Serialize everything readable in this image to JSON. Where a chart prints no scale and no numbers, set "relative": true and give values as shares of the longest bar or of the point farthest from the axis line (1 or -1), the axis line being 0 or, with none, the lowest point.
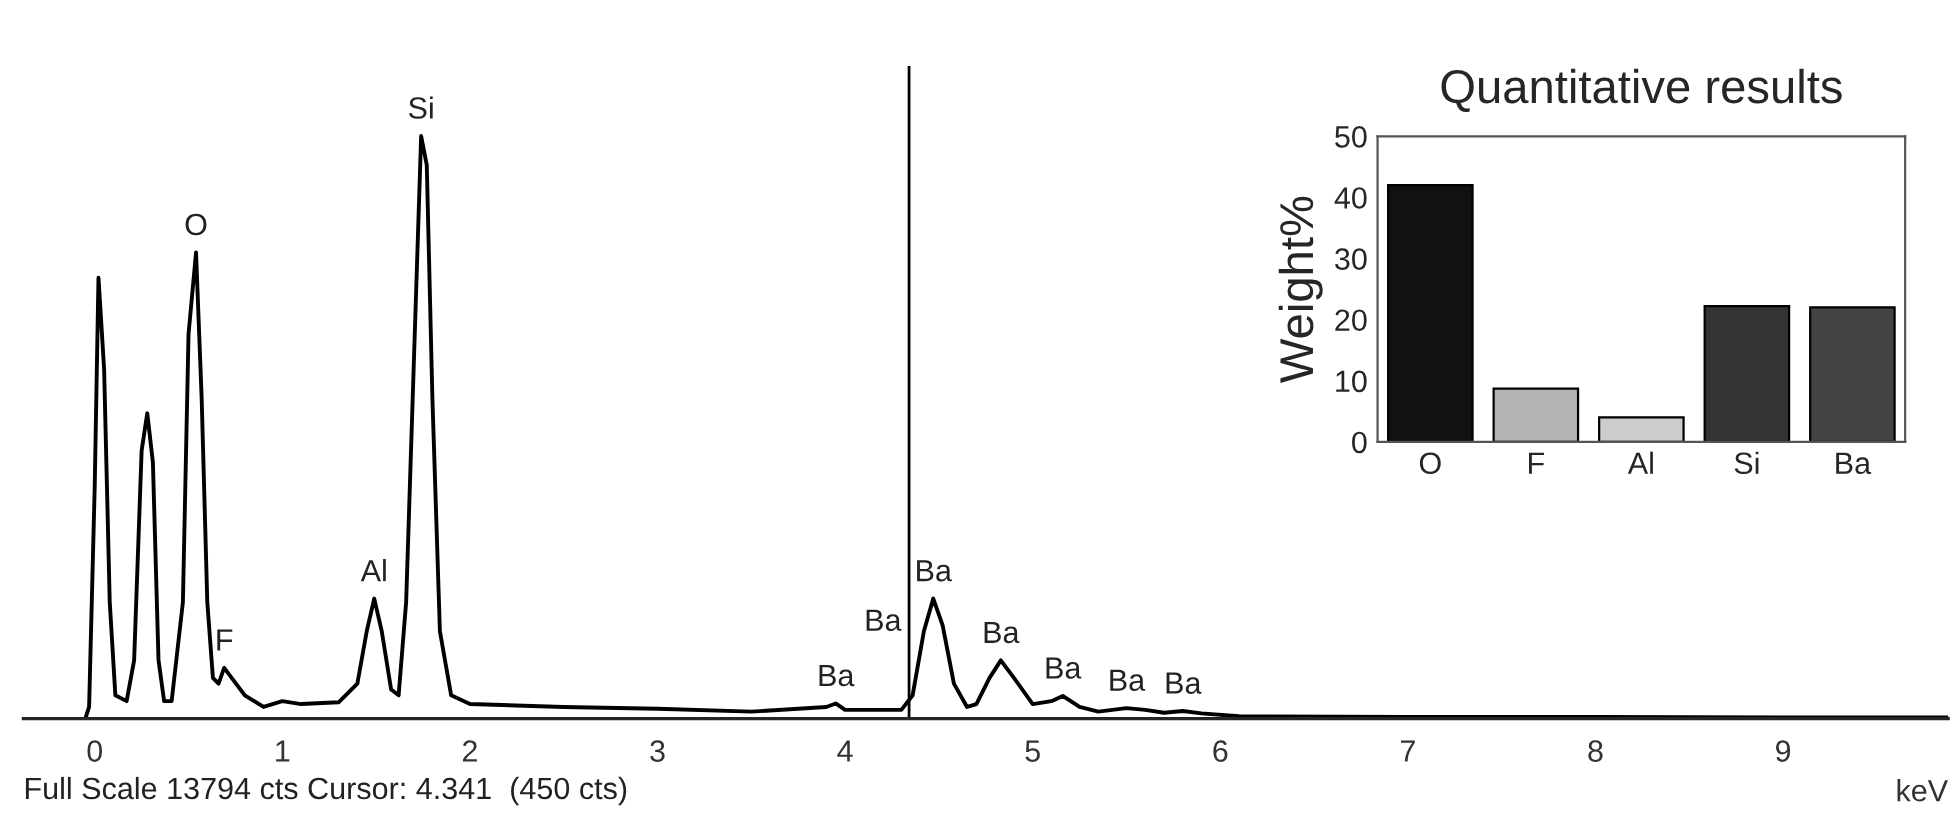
{
  "chart_data": [
    {
      "type": "line",
      "relative": true,
      "xlabel": "keV",
      "xlim": [
        -0.38,
        9.88
      ],
      "xticks": [
        0,
        1,
        2,
        3,
        4,
        5,
        6,
        7,
        8,
        9
      ],
      "grid": false,
      "legend": false,
      "marker": "none",
      "line_style": "solid",
      "ref_lines": [
        {
          "axis": "x",
          "value": 4.341,
          "color": "#000000"
        }
      ],
      "series": [
        {
          "color": "#000000",
          "x": [
            -0.05,
            -0.03,
            0.0,
            0.02,
            0.05,
            0.08,
            0.11,
            0.17,
            0.21,
            0.25,
            0.28,
            0.31,
            0.34,
            0.37,
            0.41,
            0.47,
            0.5,
            0.54,
            0.57,
            0.6,
            0.63,
            0.66,
            0.69,
            0.73,
            0.8,
            0.9,
            1.0,
            1.1,
            1.3,
            1.4,
            1.45,
            1.49,
            1.53,
            1.58,
            1.62,
            1.66,
            1.7,
            1.74,
            1.77,
            1.8,
            1.84,
            1.9,
            2.0,
            2.5,
            3.0,
            3.5,
            3.9,
            3.95,
            4.0,
            4.3,
            4.36,
            4.42,
            4.47,
            4.52,
            4.58,
            4.65,
            4.7,
            4.77,
            4.83,
            4.9,
            5.0,
            5.1,
            5.16,
            5.25,
            5.35,
            5.5,
            5.6,
            5.7,
            5.8,
            5.9,
            6.1,
            7.0,
            8.0,
            9.0,
            9.88
          ],
          "values": [
            0,
            0.02,
            0.4,
            0.757,
            0.6,
            0.2,
            0.04,
            0.03,
            0.1,
            0.46,
            0.524,
            0.44,
            0.1,
            0.03,
            0.03,
            0.2,
            0.66,
            0.8,
            0.55,
            0.2,
            0.07,
            0.06,
            0.087,
            0.07,
            0.04,
            0.02,
            0.03,
            0.025,
            0.028,
            0.06,
            0.15,
            0.206,
            0.15,
            0.05,
            0.04,
            0.2,
            0.6,
            1.0,
            0.95,
            0.55,
            0.15,
            0.04,
            0.025,
            0.02,
            0.017,
            0.012,
            0.02,
            0.026,
            0.015,
            0.015,
            0.04,
            0.15,
            0.206,
            0.16,
            0.06,
            0.02,
            0.025,
            0.07,
            0.1,
            0.07,
            0.025,
            0.03,
            0.039,
            0.02,
            0.012,
            0.018,
            0.015,
            0.01,
            0.013,
            0.009,
            0.004,
            0.003,
            0.003,
            0.002,
            0.002
          ]
        }
      ],
      "annotations": [
        {
          "text": "O",
          "x": 0.54,
          "y": 0.8
        },
        {
          "text": "F",
          "x": 0.69,
          "y": 0.087
        },
        {
          "text": "Al",
          "x": 1.49,
          "y": 0.206
        },
        {
          "text": "Si",
          "x": 1.74,
          "y": 1.0
        },
        {
          "text": "Ba",
          "x": 3.95,
          "y": 0.026
        },
        {
          "text": "Ba",
          "x": 4.36,
          "y": 0.14
        },
        {
          "text": "Ba",
          "x": 4.47,
          "y": 0.206
        },
        {
          "text": "Ba",
          "x": 4.83,
          "y": 0.1
        },
        {
          "text": "Ba",
          "x": 5.16,
          "y": 0.039
        },
        {
          "text": "Ba",
          "x": 5.5,
          "y": 0.018
        },
        {
          "text": "Ba",
          "x": 5.8,
          "y": 0.013
        },
        "Full Scale 13794 cts Cursor: 4.341  (450 cts)"
      ]
    },
    {
      "type": "bar",
      "title": "Quantitative results",
      "ylabel": "Weight%",
      "categories": [
        "O",
        "F",
        "Al",
        "Si",
        "Ba"
      ],
      "values": [
        42,
        8.7,
        4,
        22.2,
        22
      ],
      "colors": [
        "#111111",
        "#b4b4b4",
        "#cccccc",
        "#333333",
        "#444444"
      ],
      "ylim": [
        0,
        50
      ],
      "yticks": [
        0,
        10,
        20,
        30,
        40,
        50
      ],
      "grid": false,
      "legend": false
    }
  ]
}
